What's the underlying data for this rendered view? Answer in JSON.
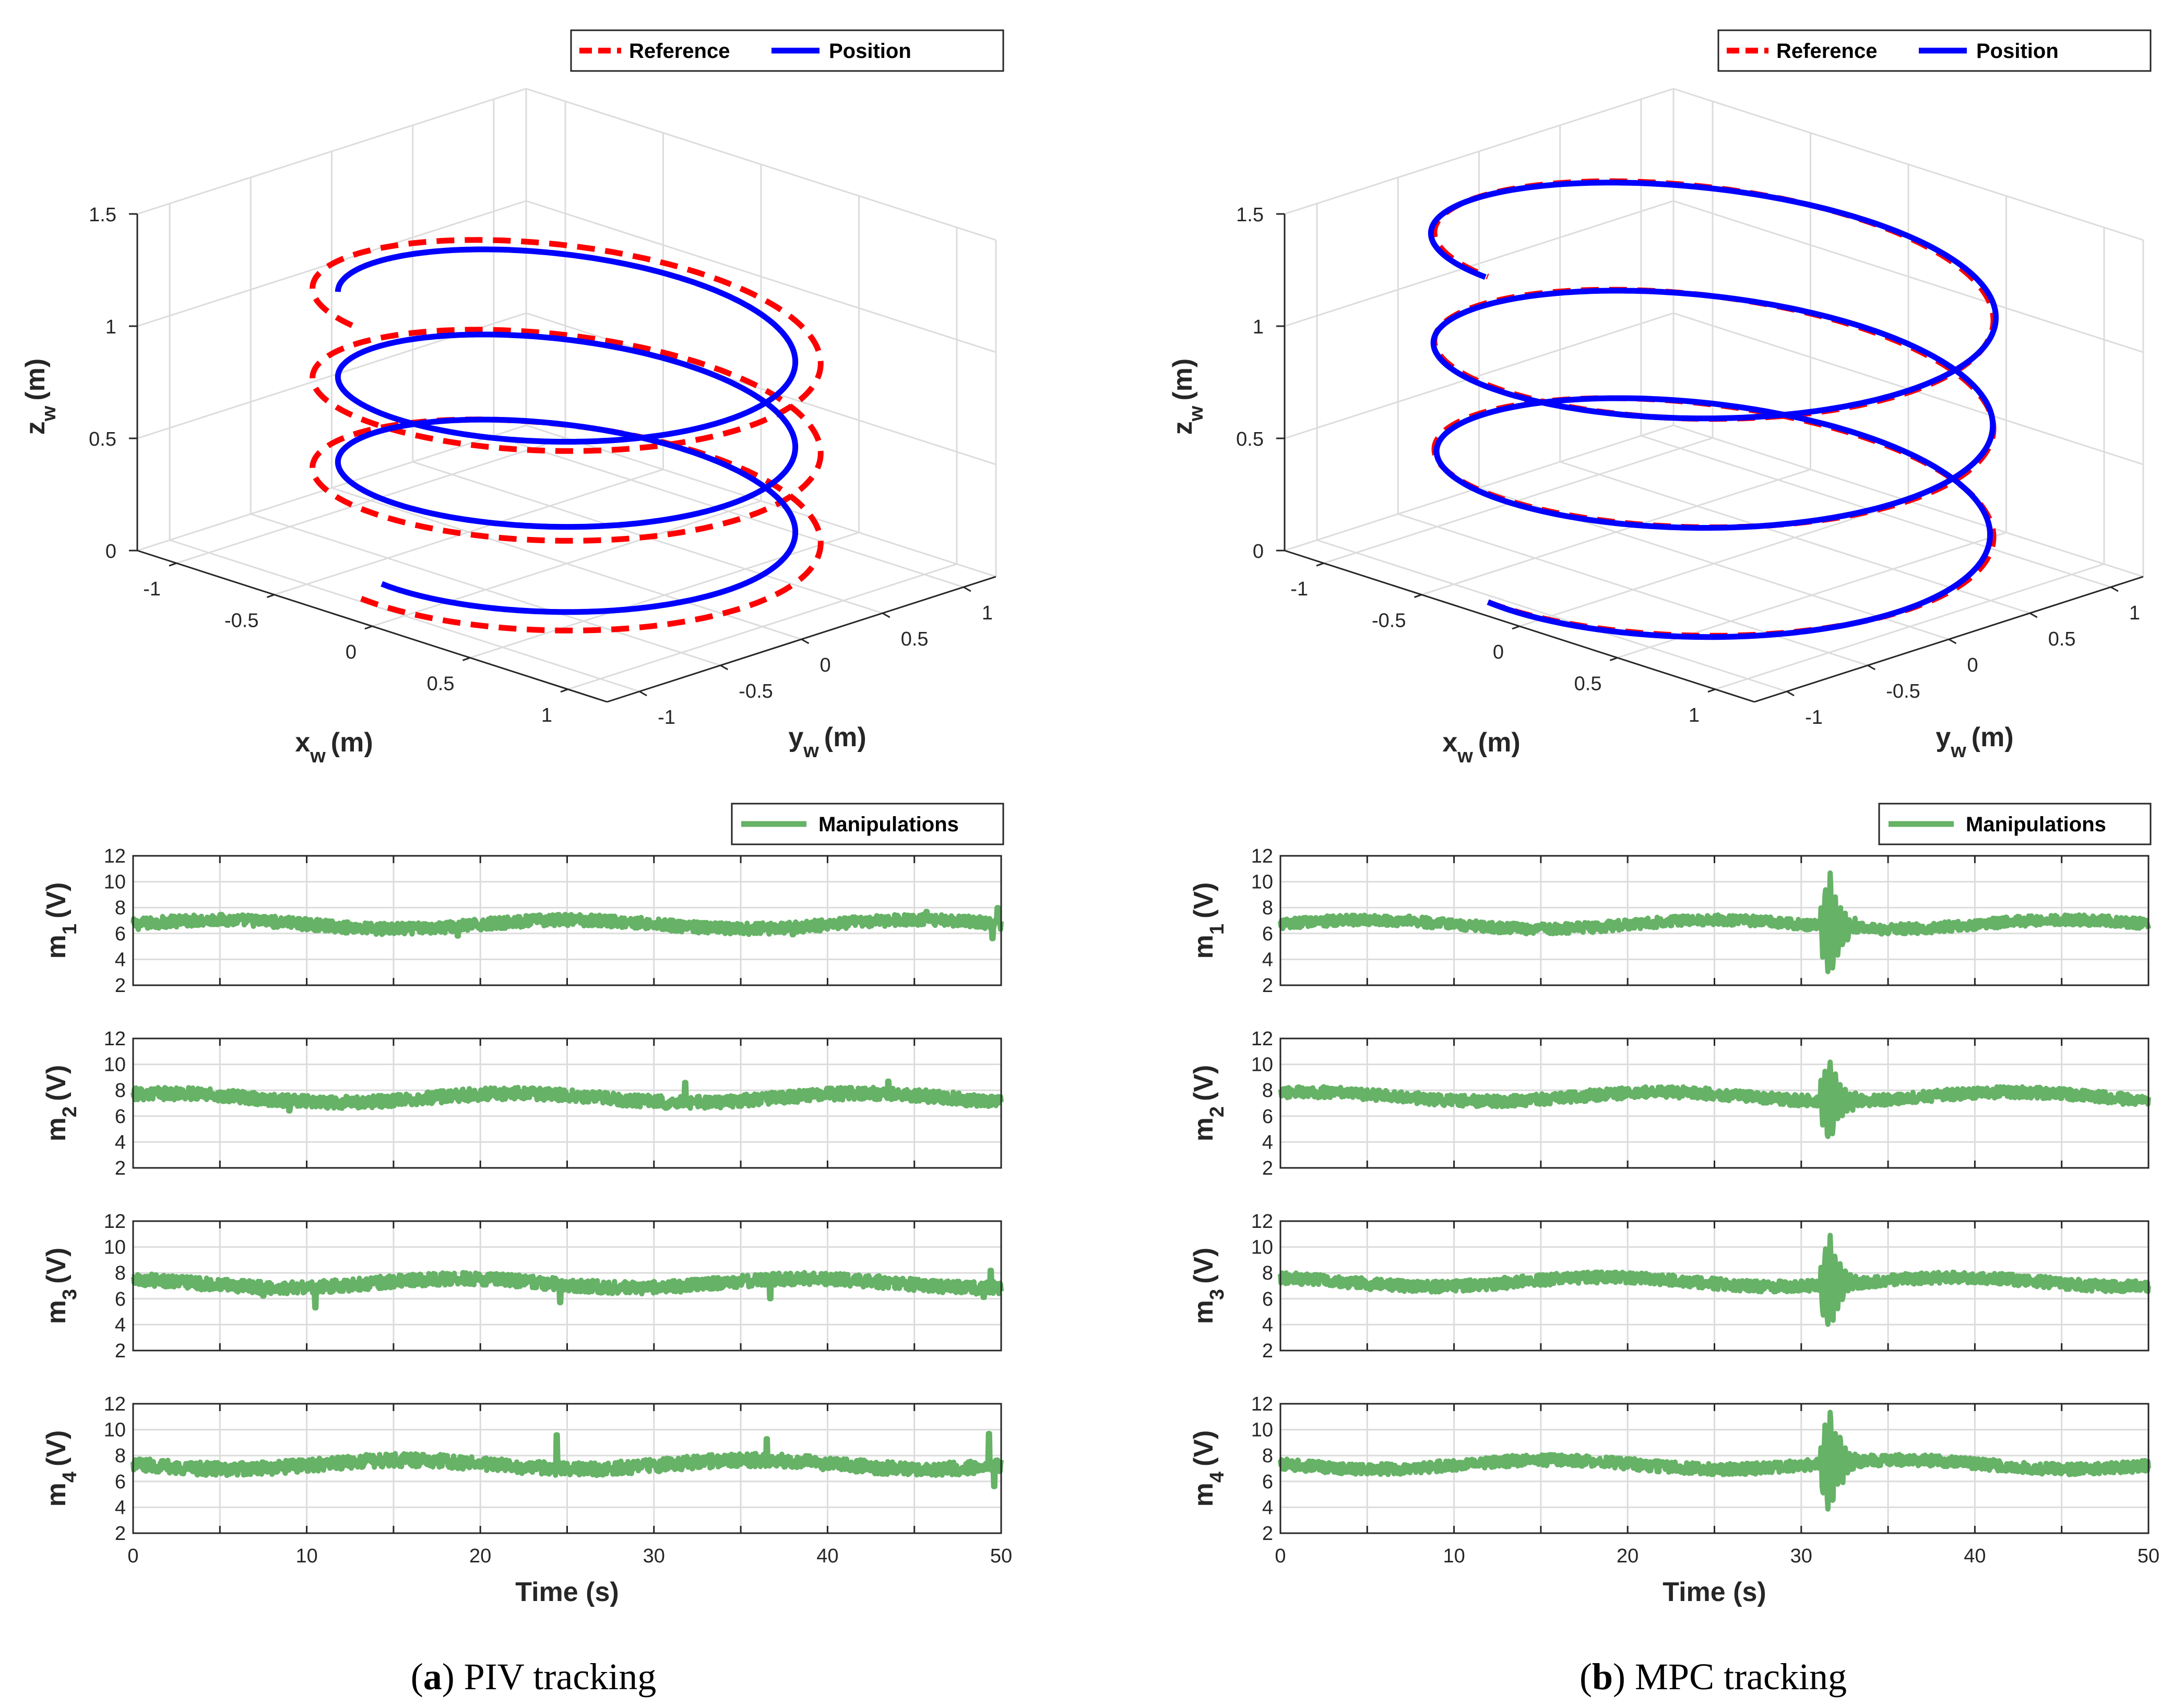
{
  "colors": {
    "reference": "#ff0000",
    "position": "#0000ff",
    "manipulations": "#66b266",
    "grid": "#dcdcdc",
    "axis": "#262626"
  },
  "panels": [
    {
      "caption_letter": "a",
      "caption_text": "PIV tracking",
      "top_chart": {
        "type": "line3d",
        "legend": {
          "placement": "top-right",
          "entries": [
            "Reference",
            "Position"
          ]
        },
        "xlabel_main": "x",
        "xlabel_sub": "w",
        "xlabel_unit": "(m)",
        "ylabel_main": "y",
        "ylabel_sub": "w",
        "ylabel_unit": "(m)",
        "zlabel_main": "z",
        "zlabel_sub": "w",
        "zlabel_unit": "(m)",
        "x_ticks": [
          "-1",
          "-0.5",
          "0",
          "0.5",
          "1"
        ],
        "y_ticks": [
          "-1",
          "-0.5",
          "0",
          "0.5",
          "1"
        ],
        "z_ticks": [
          "0",
          "0.5",
          "1",
          "1.5"
        ],
        "xlim": [
          -1.2,
          1.2
        ],
        "ylim": [
          -1.2,
          1.2
        ],
        "zlim": [
          0,
          1.5
        ],
        "grid": true,
        "series": [
          {
            "name": "Reference",
            "style": "dashed",
            "shape": "helix",
            "radius": 1.0,
            "turns": 3,
            "z_start": 0.0,
            "z_end": 1.2
          },
          {
            "name": "Position",
            "style": "solid",
            "shape": "helix",
            "radius": 0.9,
            "turns": 2.9,
            "z_start": 0.05,
            "z_end": 1.15
          }
        ]
      },
      "subplots": [
        {
          "ylabel_main": "m",
          "ylabel_sub": "1",
          "ylabel_unit": "(V)",
          "mean": 6.7,
          "noise": 0.28,
          "legend": "Manipulations",
          "spikes": [
            {
              "t": 18.7,
              "v": 5.8
            },
            {
              "t": 38.0,
              "v": 5.9
            },
            {
              "t": 45.7,
              "v": 7.7
            },
            {
              "t": 49.5,
              "v": 5.6
            },
            {
              "t": 49.8,
              "v": 8.0
            }
          ]
        },
        {
          "ylabel_main": "m",
          "ylabel_sub": "2",
          "ylabel_unit": "(V)",
          "mean": 7.4,
          "noise": 0.3,
          "spikes": [
            {
              "t": 9.0,
              "v": 6.4
            },
            {
              "t": 31.8,
              "v": 8.6
            },
            {
              "t": 43.5,
              "v": 8.7
            },
            {
              "t": 48.0,
              "v": 6.8
            }
          ]
        },
        {
          "ylabel_main": "m",
          "ylabel_sub": "3",
          "ylabel_unit": "(V)",
          "mean": 7.2,
          "noise": 0.3,
          "spikes": [
            {
              "t": 7.5,
              "v": 6.2
            },
            {
              "t": 10.5,
              "v": 5.3
            },
            {
              "t": 24.6,
              "v": 5.7
            },
            {
              "t": 36.7,
              "v": 6.0
            },
            {
              "t": 49.0,
              "v": 6.1
            },
            {
              "t": 49.4,
              "v": 8.2
            }
          ]
        },
        {
          "ylabel_main": "m",
          "ylabel_sub": "4",
          "ylabel_unit": "(V)",
          "mean": 7.3,
          "noise": 0.32,
          "spikes": [
            {
              "t": 24.4,
              "v": 9.6
            },
            {
              "t": 36.5,
              "v": 9.3
            },
            {
              "t": 49.3,
              "v": 9.7
            },
            {
              "t": 49.6,
              "v": 5.6
            }
          ]
        }
      ],
      "x_ticks": [
        "0",
        "10",
        "20",
        "30",
        "40",
        "50"
      ],
      "y_ticks": [
        "2",
        "4",
        "6",
        "8",
        "10",
        "12"
      ],
      "time_label": "Time (s)",
      "xlim": [
        0,
        50
      ],
      "ylim": [
        2,
        12
      ],
      "legend_entry": "Manipulations"
    },
    {
      "caption_letter": "b",
      "caption_text": "MPC tracking",
      "top_chart": {
        "type": "line3d",
        "legend": {
          "placement": "top-right",
          "entries": [
            "Reference",
            "Position"
          ]
        },
        "xlabel_main": "x",
        "xlabel_sub": "w",
        "xlabel_unit": "(m)",
        "ylabel_main": "y",
        "ylabel_sub": "w",
        "ylabel_unit": "(m)",
        "zlabel_main": "z",
        "zlabel_sub": "w",
        "zlabel_unit": "(m)",
        "x_ticks": [
          "-1",
          "-0.5",
          "0",
          "0.5",
          "1"
        ],
        "y_ticks": [
          "-1",
          "-0.5",
          "0",
          "0.5",
          "1"
        ],
        "z_ticks": [
          "0",
          "0.5",
          "1",
          "1.5"
        ],
        "xlim": [
          -1.2,
          1.2
        ],
        "ylim": [
          -1.2,
          1.2
        ],
        "zlim": [
          0,
          1.5
        ],
        "grid": true,
        "series": [
          {
            "name": "Reference",
            "style": "dashed",
            "shape": "helix",
            "radius": 1.1,
            "turns": 3,
            "z_start": 0.0,
            "z_end": 1.45
          },
          {
            "name": "Position",
            "style": "solid",
            "shape": "helix",
            "radius": 1.1,
            "turns": 3,
            "z_start": 0.0,
            "z_end": 1.45
          }
        ]
      },
      "subplots": [
        {
          "ylabel_main": "m",
          "ylabel_sub": "1",
          "ylabel_unit": "(V)",
          "mean": 6.7,
          "noise": 0.25,
          "burst": {
            "t": 31.6,
            "amp": 4.2
          },
          "legend": "Manipulations"
        },
        {
          "ylabel_main": "m",
          "ylabel_sub": "2",
          "ylabel_unit": "(V)",
          "mean": 7.5,
          "noise": 0.27,
          "burst": {
            "t": 31.6,
            "amp": 3.4
          }
        },
        {
          "ylabel_main": "m",
          "ylabel_sub": "3",
          "ylabel_unit": "(V)",
          "mean": 7.3,
          "noise": 0.27,
          "burst": {
            "t": 31.6,
            "amp": 3.8
          }
        },
        {
          "ylabel_main": "m",
          "ylabel_sub": "4",
          "ylabel_unit": "(V)",
          "mean": 7.3,
          "noise": 0.27,
          "burst": {
            "t": 31.6,
            "amp": 4.4
          }
        }
      ],
      "x_ticks": [
        "0",
        "10",
        "20",
        "30",
        "40",
        "50"
      ],
      "y_ticks": [
        "2",
        "4",
        "6",
        "8",
        "10",
        "12"
      ],
      "time_label": "Time (s)",
      "xlim": [
        0,
        50
      ],
      "ylim": [
        2,
        12
      ],
      "legend_entry": "Manipulations"
    }
  ],
  "chart_data": [
    {
      "type": "line",
      "panel": "a",
      "series": [
        {
          "name": "Reference",
          "values": "helix reference (3D)"
        },
        {
          "name": "Position",
          "values": "tracked position (3D)"
        }
      ]
    },
    {
      "type": "line",
      "panel": "b",
      "series": [
        {
          "name": "Reference",
          "values": "helix reference (3D)"
        },
        {
          "name": "Position",
          "values": "tracked position (3D)"
        }
      ]
    }
  ]
}
